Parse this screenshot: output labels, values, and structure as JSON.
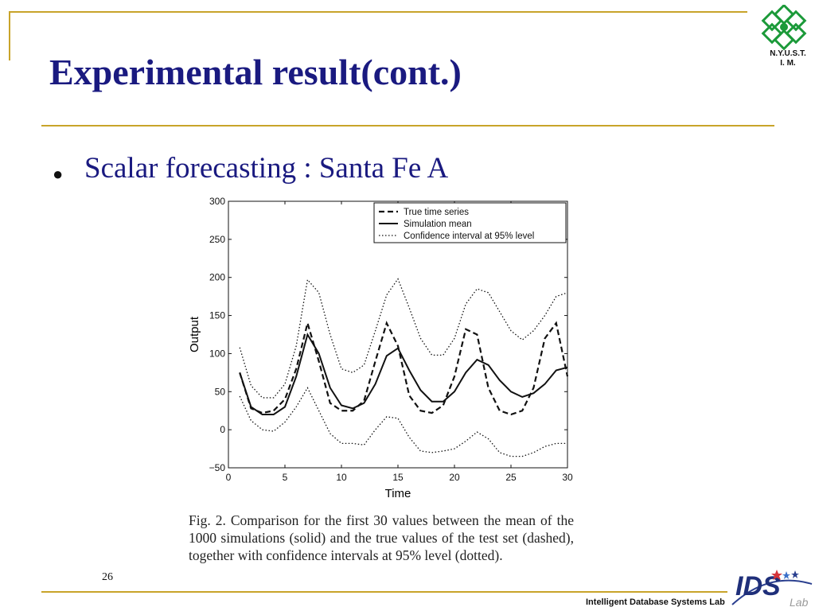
{
  "slide": {
    "title": "Experimental result(cont.)",
    "bullet": "Scalar forecasting : Santa Fe A",
    "page_number": "26",
    "footer": "Intelligent Database Systems Lab",
    "logo_text_line1": "N.Y.U.S.T.",
    "logo_text_line2": "I. M.",
    "ids_logo_text": "IDS",
    "ids_logo_small": "Lab",
    "caption": "Fig. 2. Comparison for the first 30 values between the mean of the 1000 simulations (solid) and the true values of the test set (dashed), together with confidence intervals at 95% level (dotted)."
  },
  "colors": {
    "title": "#1a1a80",
    "accent_rule": "#c8a42a",
    "logo_green": "#1c9a3a"
  },
  "chart_data": {
    "type": "line",
    "xlabel": "Time",
    "ylabel": "Output",
    "xlim": [
      0,
      30
    ],
    "ylim": [
      -50,
      300
    ],
    "xticks": [
      0,
      5,
      10,
      15,
      20,
      25,
      30
    ],
    "yticks": [
      -50,
      0,
      50,
      100,
      150,
      200,
      250,
      300
    ],
    "legend_position": "top-right",
    "x": [
      1,
      2,
      3,
      4,
      5,
      6,
      7,
      8,
      9,
      10,
      11,
      12,
      13,
      14,
      15,
      16,
      17,
      18,
      19,
      20,
      21,
      22,
      23,
      24,
      25,
      26,
      27,
      28,
      29,
      30
    ],
    "series": [
      {
        "name": "True time series",
        "style": "dashed",
        "values": [
          75,
          28,
          22,
          25,
          40,
          80,
          140,
          90,
          35,
          25,
          25,
          38,
          90,
          140,
          110,
          45,
          25,
          22,
          32,
          70,
          132,
          125,
          55,
          25,
          20,
          25,
          55,
          120,
          140,
          70
        ]
      },
      {
        "name": "Simulation mean",
        "style": "solid",
        "values": [
          75,
          30,
          20,
          20,
          30,
          70,
          125,
          100,
          55,
          32,
          28,
          35,
          60,
          97,
          107,
          78,
          52,
          37,
          37,
          50,
          75,
          92,
          85,
          65,
          50,
          43,
          48,
          60,
          78,
          82
        ]
      },
      {
        "name": "Confidence interval at 95% level",
        "style": "dotted",
        "values": [
          108,
          58,
          42,
          42,
          60,
          110,
          197,
          180,
          125,
          80,
          75,
          85,
          130,
          177,
          198,
          160,
          120,
          98,
          98,
          120,
          165,
          185,
          180,
          155,
          130,
          118,
          130,
          150,
          175,
          180
        ]
      },
      {
        "name": "Confidence interval at 95% level (lower)",
        "style": "dotted",
        "values": [
          44,
          12,
          0,
          -2,
          10,
          30,
          55,
          25,
          -5,
          -18,
          -18,
          -20,
          0,
          17,
          15,
          -10,
          -28,
          -30,
          -28,
          -25,
          -15,
          -3,
          -12,
          -30,
          -35,
          -35,
          -30,
          -22,
          -18,
          -18
        ]
      }
    ]
  }
}
